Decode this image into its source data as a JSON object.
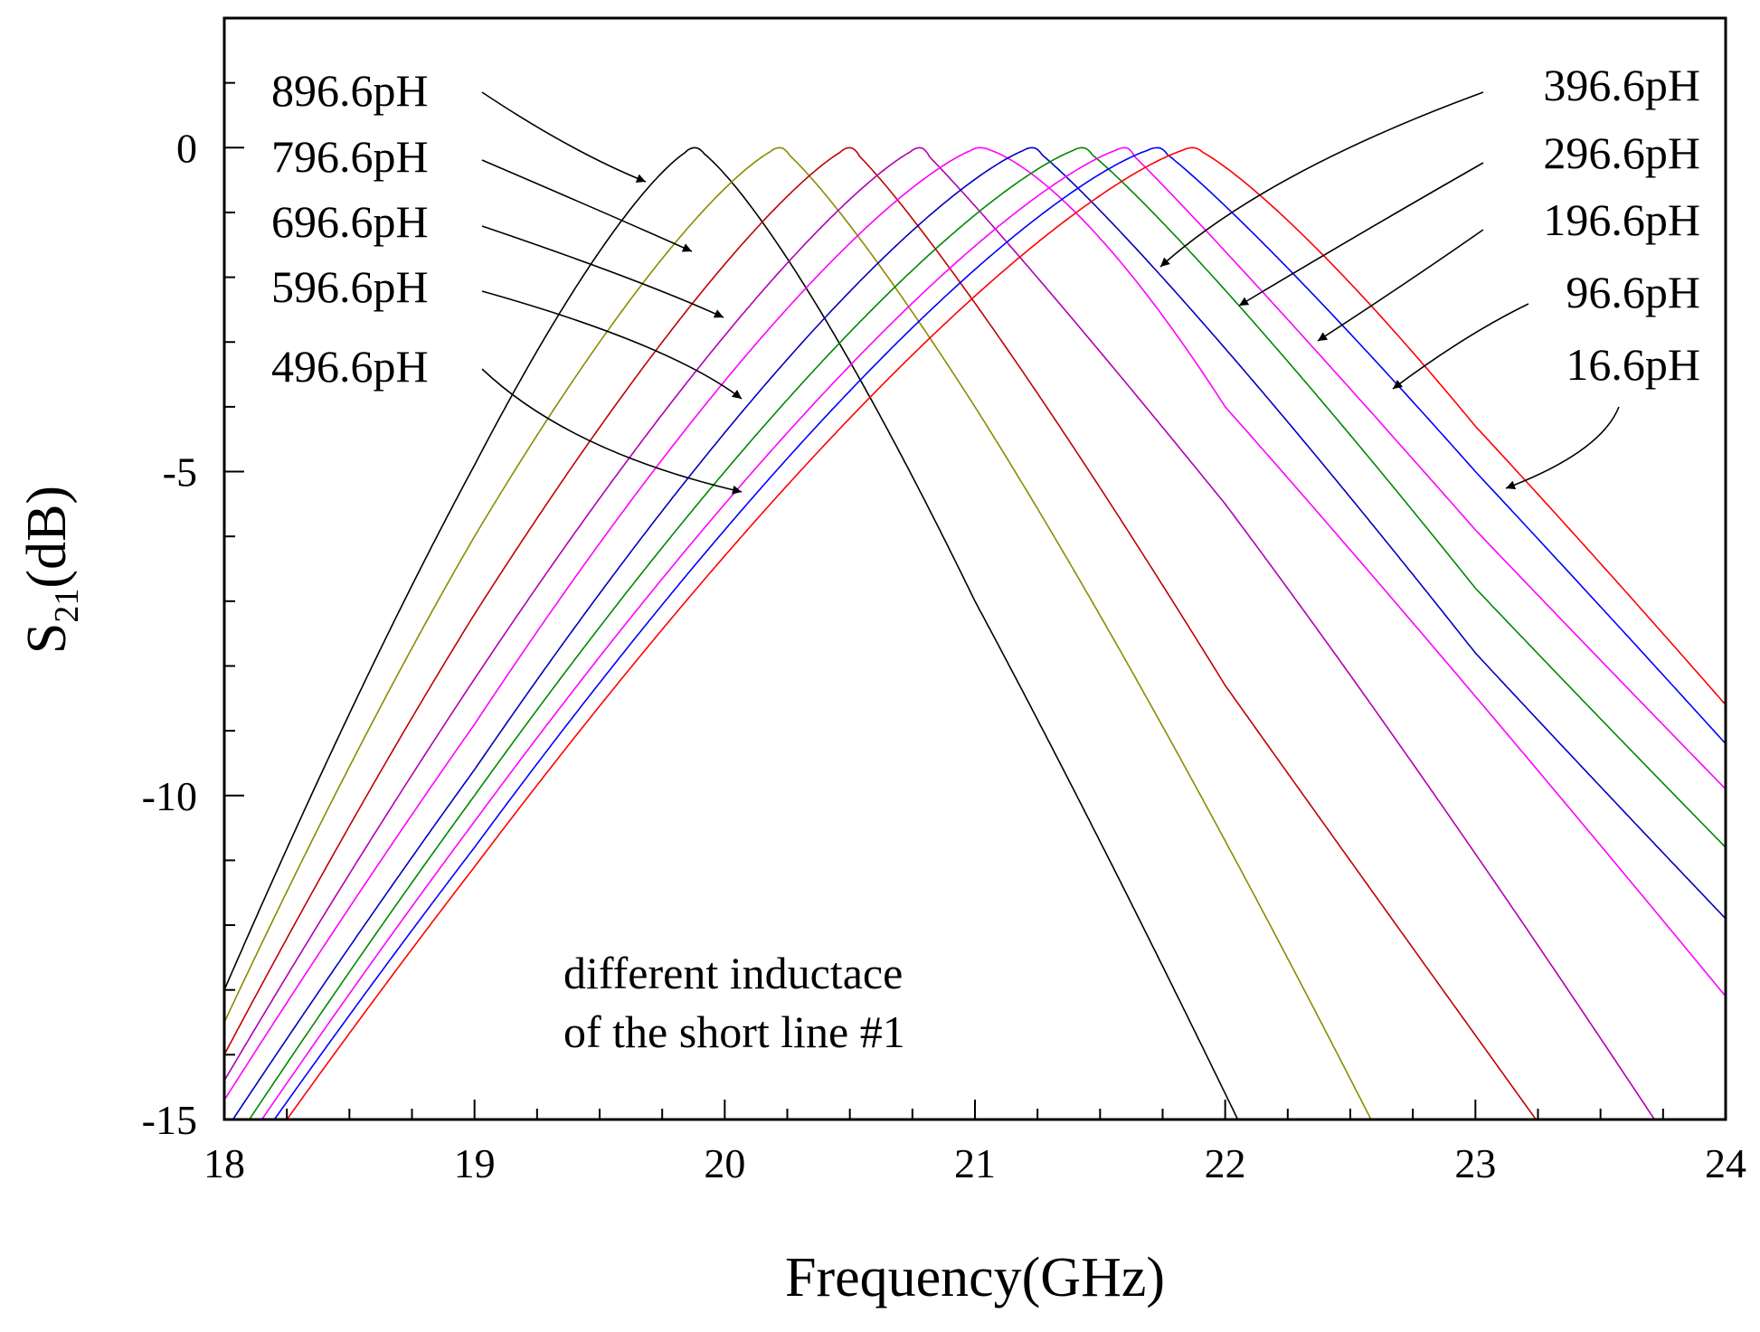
{
  "chart_data": {
    "type": "line",
    "xlabel": "Frequency(GHz)",
    "ylabel_main": "S",
    "ylabel_sub": "21",
    "ylabel_unit": "(dB)",
    "xlim": [
      18,
      24
    ],
    "ylim": [
      -15,
      2
    ],
    "xticks": [
      "18",
      "19",
      "20",
      "21",
      "22",
      "23",
      "24"
    ],
    "yticks": [
      "0",
      "-5",
      "-10",
      "-15"
    ],
    "annotation_lines": [
      "different inductace",
      "of the short line #1"
    ],
    "series": [
      {
        "name": "896.6pH",
        "color": "#000000",
        "f0": 19.88,
        "left": [
          [
            18,
            -13.0
          ],
          [
            19,
            -4.9
          ],
          [
            19.5,
            -1.6
          ]
        ],
        "right": [
          [
            20.5,
            -3.3
          ],
          [
            21,
            -7.0
          ],
          [
            22,
            -14.6
          ]
        ]
      },
      {
        "name": "796.6pH",
        "color": "#8b8b00",
        "f0": 20.22,
        "left": [
          [
            18,
            -13.5
          ],
          [
            19,
            -6.0
          ],
          [
            19.5,
            -3.0
          ]
        ],
        "right": [
          [
            20.5,
            -1.2
          ],
          [
            21,
            -4.0
          ],
          [
            22,
            -10.7
          ]
        ]
      },
      {
        "name": "696.6pH",
        "color": "#c00000",
        "f0": 20.5,
        "left": [
          [
            18,
            -14.0
          ],
          [
            19,
            -7.2
          ],
          [
            20,
            -1.8
          ]
        ],
        "right": [
          [
            21,
            -2.4
          ],
          [
            22,
            -8.3
          ],
          [
            23,
            -13.7
          ]
        ]
      },
      {
        "name": "596.6pH",
        "color": "#b000b0",
        "f0": 20.78,
        "left": [
          [
            18,
            -14.4
          ],
          [
            19,
            -8.2
          ],
          [
            20,
            -2.9
          ]
        ],
        "right": [
          [
            21,
            -0.9
          ],
          [
            22,
            -5.5
          ],
          [
            23,
            -10.9
          ]
        ]
      },
      {
        "name": "496.6pH",
        "color": "#ff00ff",
        "f0": 21.02,
        "left": [
          [
            18,
            -14.7
          ],
          [
            19,
            -8.9
          ],
          [
            20,
            -3.6
          ]
        ],
        "right": [
          [
            21.5,
            -1.4
          ],
          [
            22,
            -4.0
          ],
          [
            24,
            -13.1
          ]
        ]
      },
      {
        "name": "396.6pH",
        "color": "#0000c0",
        "f0": 21.23,
        "left": [
          [
            18,
            -15.2
          ],
          [
            19,
            -9.6
          ],
          [
            20,
            -4.4
          ]
        ],
        "right": [
          [
            22,
            -3.1
          ],
          [
            23,
            -7.8
          ],
          [
            24,
            -11.9
          ]
        ]
      },
      {
        "name": "296.6pH",
        "color": "#008800",
        "f0": 21.43,
        "left": [
          [
            18.1,
            -15.0
          ],
          [
            19,
            -10.0
          ],
          [
            20,
            -5.0
          ]
        ],
        "right": [
          [
            22,
            -2.2
          ],
          [
            23,
            -6.8
          ],
          [
            24,
            -10.8
          ]
        ]
      },
      {
        "name": "196.6pH",
        "color": "#ff00ff",
        "f0": 21.6,
        "left": [
          [
            18.15,
            -15.0
          ],
          [
            19,
            -10.4
          ],
          [
            20,
            -5.5
          ]
        ],
        "right": [
          [
            22,
            -1.6
          ],
          [
            23,
            -5.9
          ],
          [
            24,
            -9.9
          ]
        ]
      },
      {
        "name": "96.6pH",
        "color": "#0000ff",
        "f0": 21.73,
        "left": [
          [
            18.2,
            -15.0
          ],
          [
            19,
            -10.8
          ],
          [
            20,
            -5.9
          ]
        ],
        "right": [
          [
            22,
            -0.9
          ],
          [
            23,
            -5.0
          ],
          [
            24,
            -9.2
          ]
        ]
      },
      {
        "name": "16.6pH",
        "color": "#ff0000",
        "f0": 21.87,
        "left": [
          [
            18.25,
            -15.0
          ],
          [
            19,
            -11.1
          ],
          [
            20,
            -6.3
          ]
        ],
        "right": [
          [
            22,
            -0.3
          ],
          [
            23,
            -4.3
          ],
          [
            24,
            -8.6
          ]
        ]
      }
    ],
    "labels": [
      {
        "text": "896.6pH"
      },
      {
        "text": "796.6pH"
      },
      {
        "text": "696.6pH"
      },
      {
        "text": "596.6pH"
      },
      {
        "text": "496.6pH"
      },
      {
        "text": "396.6pH"
      },
      {
        "text": "296.6pH"
      },
      {
        "text": "196.6pH"
      },
      {
        "text": "96.6pH"
      },
      {
        "text": "16.6pH"
      }
    ]
  }
}
